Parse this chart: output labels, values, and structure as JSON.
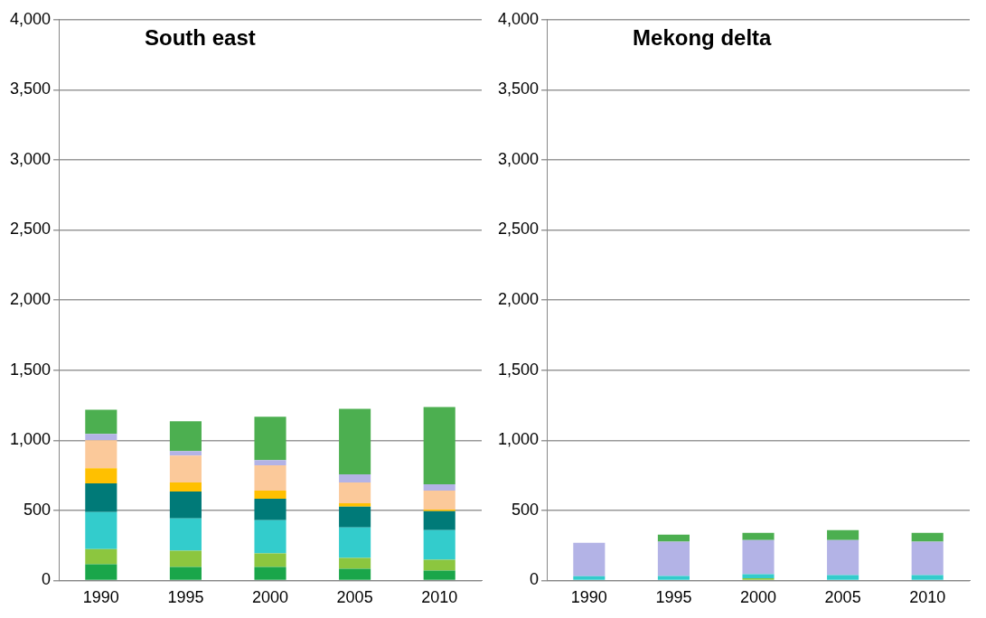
{
  "chart_data": [
    {
      "type": "bar",
      "title": "South east",
      "stacked": true,
      "grid": "y",
      "categories": [
        "1990",
        "1995",
        "2000",
        "2005",
        "2010"
      ],
      "ylim": [
        0,
        4000
      ],
      "yticks": [
        {
          "value": 0,
          "label": "0"
        },
        {
          "value": 500,
          "label": "500"
        },
        {
          "value": 1000,
          "label": "1,000"
        },
        {
          "value": 1500,
          "label": "1,500"
        },
        {
          "value": 2000,
          "label": "2,000"
        },
        {
          "value": 2500,
          "label": "2,500"
        },
        {
          "value": 3000,
          "label": "3,000"
        },
        {
          "value": 3500,
          "label": "3,500"
        },
        {
          "value": 4000,
          "label": "4,000"
        }
      ],
      "series": [
        {
          "color": "#1aa64a",
          "values": [
            115,
            96,
            96,
            83,
            71
          ]
        },
        {
          "color": "#8cc63f",
          "values": [
            109,
            116,
            96,
            77,
            76
          ]
        },
        {
          "color": "#33cccc",
          "values": [
            263,
            230,
            237,
            218,
            212
          ]
        },
        {
          "color": "#007a78",
          "values": [
            205,
            193,
            154,
            148,
            135
          ]
        },
        {
          "color": "#ffc000",
          "values": [
            109,
            64,
            58,
            25,
            12
          ]
        },
        {
          "color": "#fbc99a",
          "values": [
            199,
            192,
            180,
            148,
            135
          ]
        },
        {
          "color": "#b3b3e6",
          "values": [
            45,
            32,
            38,
            57,
            45
          ]
        },
        {
          "color": "#4caf50",
          "values": [
            173,
            212,
            308,
            468,
            551
          ]
        }
      ]
    },
    {
      "type": "bar",
      "title": "Mekong delta",
      "stacked": true,
      "grid": "y",
      "categories": [
        "1990",
        "1995",
        "2000",
        "2005",
        "2010"
      ],
      "ylim": [
        0,
        4000
      ],
      "yticks": [
        {
          "value": 0,
          "label": "0"
        },
        {
          "value": 500,
          "label": "500"
        },
        {
          "value": 1000,
          "label": "1,000"
        },
        {
          "value": 1500,
          "label": "1,500"
        },
        {
          "value": 2000,
          "label": "2,000"
        },
        {
          "value": 2500,
          "label": "2,500"
        },
        {
          "value": 3000,
          "label": "3,000"
        },
        {
          "value": 3500,
          "label": "3,500"
        },
        {
          "value": 4000,
          "label": "4,000"
        }
      ],
      "series": [
        {
          "color": "#1aa64a",
          "values": [
            0,
            0,
            0,
            0,
            0
          ]
        },
        {
          "color": "#8cc63f",
          "values": [
            0,
            0,
            15,
            0,
            0
          ]
        },
        {
          "color": "#33cccc",
          "values": [
            30,
            32,
            30,
            38,
            38
          ]
        },
        {
          "color": "#007a78",
          "values": [
            0,
            0,
            0,
            0,
            0
          ]
        },
        {
          "color": "#ffc000",
          "values": [
            0,
            0,
            0,
            0,
            0
          ]
        },
        {
          "color": "#fbc99a",
          "values": [
            0,
            0,
            0,
            0,
            0
          ]
        },
        {
          "color": "#b3b3e6",
          "values": [
            239,
            244,
            243,
            250,
            238
          ]
        },
        {
          "color": "#4caf50",
          "values": [
            0,
            51,
            52,
            71,
            64
          ]
        }
      ]
    }
  ]
}
